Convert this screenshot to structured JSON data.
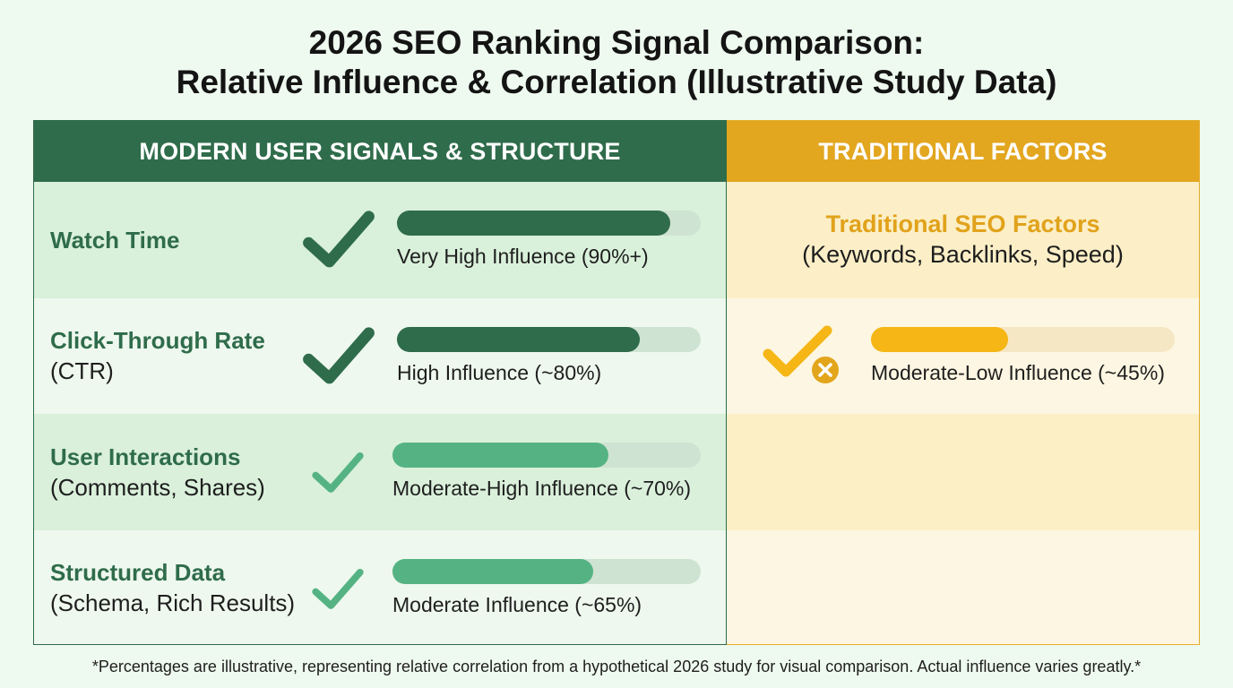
{
  "title_line1": "2026 SEO Ranking Signal Comparison:",
  "title_line2": "Relative Influence & Correlation (Illustrative Study Data)",
  "left_header": "MODERN USER SIGNALS & STRUCTURE",
  "right_header": "TRADITIONAL FACTORS",
  "colors": {
    "modern_dark": "#2f6c4b",
    "modern_light": "#55b383",
    "traditional": "#f5b616",
    "track_green": "#cfe3d2",
    "track_yellow": "#f6e7c4"
  },
  "traditional": {
    "title": "Traditional SEO Factors",
    "subtitle": "(Keywords, Backlinks, Speed)",
    "icon": "check-with-x-icon"
  },
  "footnote": "*Percentages are illustrative, representing relative correlation from a hypothetical 2026 study for visual comparison. Actual influence varies greatly.*",
  "chart_data": {
    "type": "bar",
    "orientation": "horizontal",
    "scale": [
      0,
      100
    ],
    "series": [
      {
        "name": "MODERN USER SIGNALS & STRUCTURE",
        "items": [
          {
            "label": "Watch Time",
            "sublabel": "",
            "value": 90,
            "caption": "Very High Influence (90%+)",
            "icon": "checkmark-icon"
          },
          {
            "label": "Click-Through Rate",
            "sublabel": "(CTR)",
            "value": 80,
            "caption": "High Influence (~80%)",
            "icon": "checkmark-icon"
          },
          {
            "label": "User Interactions",
            "sublabel": "(Comments, Shares)",
            "value": 70,
            "caption": "Moderate-High Influence (~70%)",
            "icon": "checkmark-icon"
          },
          {
            "label": "Structured Data",
            "sublabel": "(Schema, Rich Results)",
            "value": 65,
            "caption": "Moderate Influence (~65%)",
            "icon": "checkmark-icon"
          }
        ]
      },
      {
        "name": "TRADITIONAL FACTORS",
        "items": [
          {
            "label": "Traditional SEO Factors",
            "sublabel": "(Keywords, Backlinks, Speed)",
            "value": 45,
            "caption": "Moderate-Low Influence (~45%)",
            "icon": "check-with-x-icon"
          }
        ]
      }
    ]
  }
}
